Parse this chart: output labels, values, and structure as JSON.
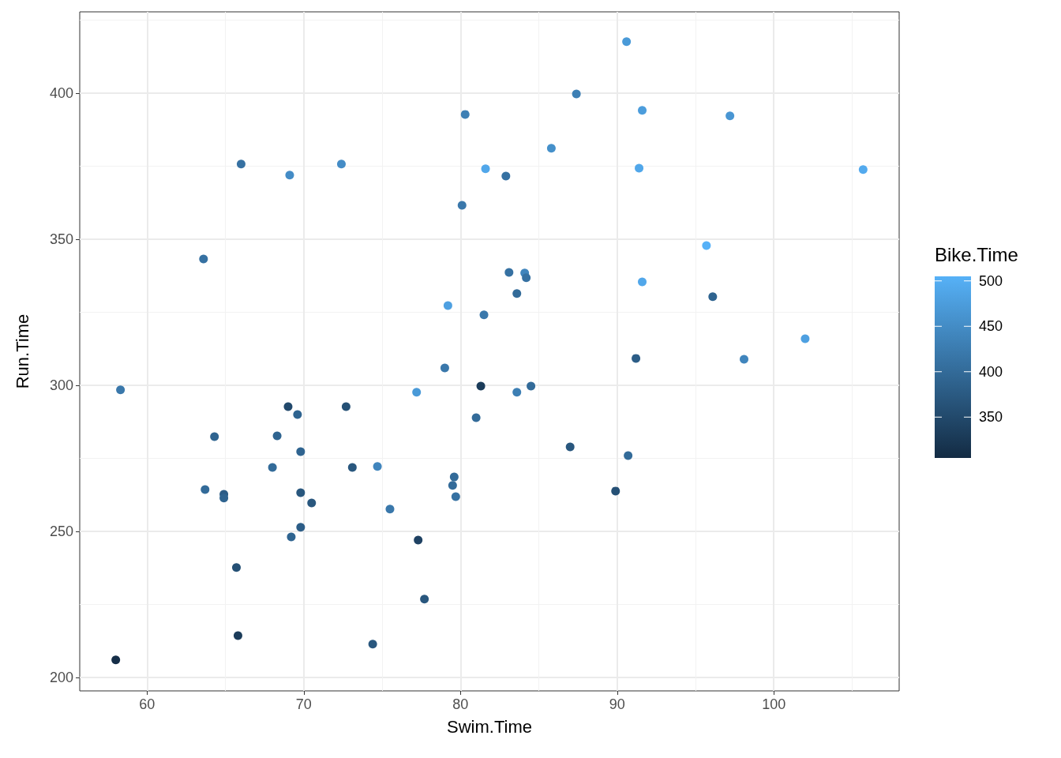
{
  "chart_data": {
    "type": "scatter",
    "xlabel": "Swim.Time",
    "ylabel": "Run.Time",
    "clabel": "Bike.Time",
    "xlim": [
      55.7,
      108
    ],
    "xticks": [
      60,
      70,
      80,
      90,
      100
    ],
    "ylim": [
      195.4,
      427.8
    ],
    "yticks": [
      200,
      250,
      300,
      350,
      400
    ],
    "clim": [
      305,
      505
    ],
    "cticks": [
      350,
      400,
      450,
      500
    ],
    "grid": true,
    "marker": "circle",
    "x": [
      90.6,
      87.4,
      80.3,
      91.6,
      97.2,
      85.8,
      66.0,
      69.1,
      72.4,
      81.6,
      82.9,
      91.4,
      105.7,
      80.1,
      63.6,
      95.7,
      83.1,
      84.1,
      84.2,
      91.6,
      83.6,
      79.2,
      96.1,
      81.5,
      102.0,
      91.2,
      98.1,
      79.0,
      58.3,
      77.2,
      81.3,
      83.6,
      84.5,
      69.0,
      69.6,
      72.7,
      81.0,
      64.3,
      68.3,
      69.8,
      87.0,
      90.7,
      68.0,
      73.1,
      74.7,
      79.6,
      79.5,
      79.7,
      63.7,
      64.9,
      64.9,
      69.8,
      70.5,
      89.9,
      75.5,
      69.8,
      69.2,
      77.3,
      65.7,
      77.7,
      65.8,
      74.4,
      58.0
    ],
    "values": [
      417.6,
      399.7,
      392.7,
      394.1,
      392.2,
      381.1,
      375.7,
      371.9,
      375.7,
      374.1,
      371.6,
      374.3,
      373.8,
      361.6,
      343.2,
      347.8,
      338.6,
      338.4,
      336.8,
      335.4,
      331.4,
      327.3,
      330.3,
      324.1,
      315.9,
      309.2,
      308.9,
      305.9,
      298.4,
      297.6,
      299.7,
      297.6,
      299.7,
      292.7,
      290.0,
      292.7,
      288.9,
      282.4,
      282.7,
      277.3,
      278.9,
      275.9,
      271.9,
      271.9,
      272.2,
      268.6,
      265.7,
      261.9,
      264.3,
      262.7,
      261.4,
      263.2,
      259.7,
      263.8,
      257.6,
      251.4,
      248.1,
      247.0,
      237.6,
      226.8,
      214.3,
      211.4,
      206.0
    ],
    "cvalues": [
      470,
      430,
      430,
      475,
      465,
      455,
      410,
      450,
      450,
      490,
      410,
      490,
      495,
      420,
      410,
      505,
      410,
      440,
      410,
      490,
      400,
      480,
      390,
      420,
      480,
      380,
      440,
      420,
      420,
      470,
      330,
      430,
      400,
      350,
      390,
      360,
      400,
      390,
      390,
      390,
      370,
      400,
      400,
      370,
      440,
      400,
      400,
      410,
      400,
      380,
      390,
      370,
      370,
      360,
      420,
      380,
      390,
      340,
      360,
      370,
      330,
      370,
      310
    ]
  }
}
